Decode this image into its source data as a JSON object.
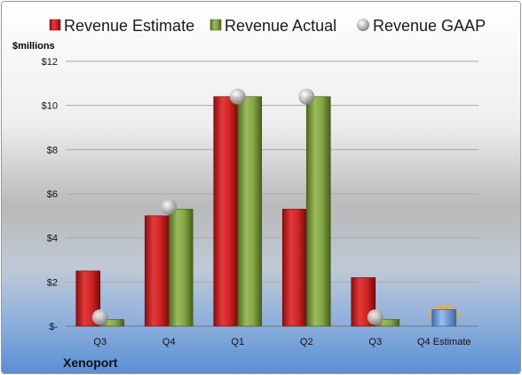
{
  "chart_data": {
    "type": "bar",
    "company": "Xenoport",
    "unit_label": "$millions",
    "categories": [
      "Q3",
      "Q4",
      "Q1",
      "Q2",
      "Q3",
      "Q4 Estimate"
    ],
    "ylim": [
      0,
      12
    ],
    "y_ticks": [
      0,
      2,
      4,
      6,
      8,
      10,
      12
    ],
    "y_tick_labels": [
      "$-",
      "$2",
      "$4",
      "$6",
      "$8",
      "$10",
      "$12"
    ],
    "grid": true,
    "legend_position": "top",
    "series": [
      {
        "name": "Revenue Estimate",
        "kind": "bar",
        "color": "#c81e1e",
        "values": [
          2.5,
          5.0,
          10.4,
          5.3,
          2.2,
          null
        ]
      },
      {
        "name": "Revenue Actual",
        "kind": "bar",
        "color": "#7a9a3a",
        "values": [
          0.3,
          5.3,
          10.4,
          10.4,
          0.3,
          null
        ]
      },
      {
        "name": "Revenue GAAP",
        "kind": "marker",
        "color": "#b8b8b8",
        "values": [
          0.4,
          5.4,
          10.4,
          10.4,
          0.4,
          null
        ]
      }
    ],
    "estimate_bar": {
      "category": "Q4 Estimate",
      "value": 0.75,
      "color": "#6c9bd9",
      "glow": "#f0a030"
    }
  }
}
